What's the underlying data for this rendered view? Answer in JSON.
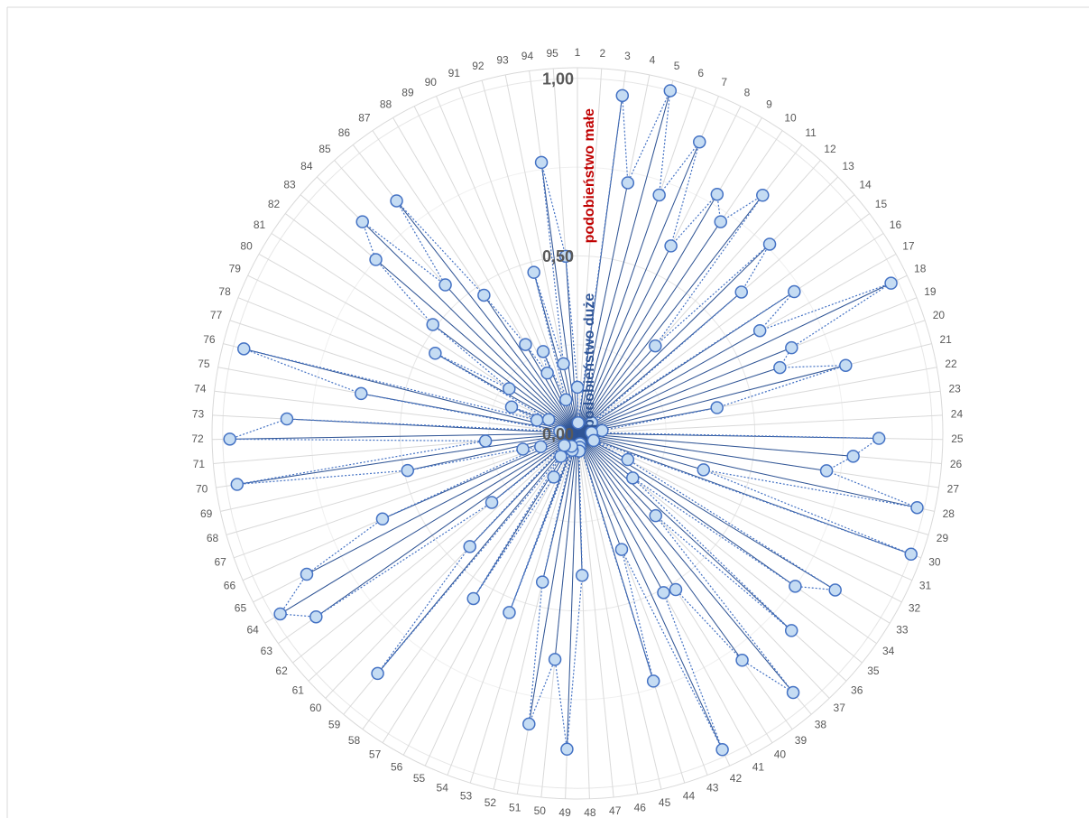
{
  "chart_data": {
    "type": "radar",
    "categories": [
      "1",
      "2",
      "3",
      "4",
      "5",
      "6",
      "7",
      "8",
      "9",
      "10",
      "11",
      "12",
      "13",
      "14",
      "15",
      "16",
      "17",
      "18",
      "19",
      "20",
      "21",
      "22",
      "23",
      "24",
      "25",
      "26",
      "27",
      "28",
      "29",
      "30",
      "31",
      "32",
      "33",
      "34",
      "35",
      "36",
      "37",
      "38",
      "39",
      "40",
      "41",
      "42",
      "43",
      "44",
      "45",
      "46",
      "47",
      "48",
      "49",
      "50",
      "51",
      "52",
      "53",
      "54",
      "55",
      "56",
      "57",
      "58",
      "59",
      "60",
      "61",
      "62",
      "63",
      "64",
      "65",
      "66",
      "67",
      "68",
      "69",
      "70",
      "71",
      "72",
      "73",
      "74",
      "75",
      "76",
      "77",
      "78",
      "79",
      "80",
      "81",
      "82",
      "83",
      "84",
      "85",
      "86",
      "87",
      "88",
      "89",
      "90",
      "91",
      "92",
      "93",
      "94",
      "95"
    ],
    "values": [
      0.13,
      0.03,
      0.96,
      0.72,
      1.0,
      0.71,
      0.89,
      0.59,
      0.78,
      0.72,
      0.85,
      0.33,
      0.76,
      0.61,
      0.05,
      0.73,
      0.59,
      0.98,
      0.65,
      0.6,
      0.78,
      0.4,
      0.07,
      0.04,
      0.85,
      0.78,
      0.71,
      0.98,
      0.37,
      1.0,
      0.05,
      0.16,
      0.85,
      0.75,
      0.2,
      0.82,
      0.32,
      0.95,
      0.79,
      0.52,
      0.51,
      0.98,
      0.35,
      0.73,
      0.03,
      0.04,
      0.05,
      0.4,
      0.89,
      0.64,
      0.83,
      0.43,
      0.05,
      0.54,
      0.04,
      0.14,
      0.55,
      0.08,
      0.88,
      0.44,
      0.05,
      0.31,
      0.9,
      0.98,
      0.86,
      0.6,
      0.11,
      0.16,
      0.49,
      0.97,
      0.26,
      0.98,
      0.82,
      0.05,
      0.62,
      0.97,
      0.12,
      0.2,
      0.09,
      0.46,
      0.23,
      0.51,
      0.75,
      0.85,
      0.56,
      0.83,
      0.47,
      0.29,
      0.19,
      0.25,
      0.1,
      0.47,
      0.2,
      0.77,
      0.5
    ],
    "color": "#4472c4",
    "marker_fill": "#c5dcf3",
    "stem_color": "#2f5597",
    "ylim": [
      0,
      1.03
    ],
    "yticks": [
      {
        "value": 0,
        "label": "0,00"
      },
      {
        "value": 0.5,
        "label": "0,50"
      },
      {
        "value": 1,
        "label": "1,00"
      }
    ],
    "minor_grid": [
      0.25,
      0.75
    ],
    "grid": true,
    "annotations": [
      {
        "text": "podobieństwo małe",
        "color": "#c00000"
      },
      {
        "text": "podobieństwo duże",
        "color": "#2f5597"
      }
    ]
  }
}
